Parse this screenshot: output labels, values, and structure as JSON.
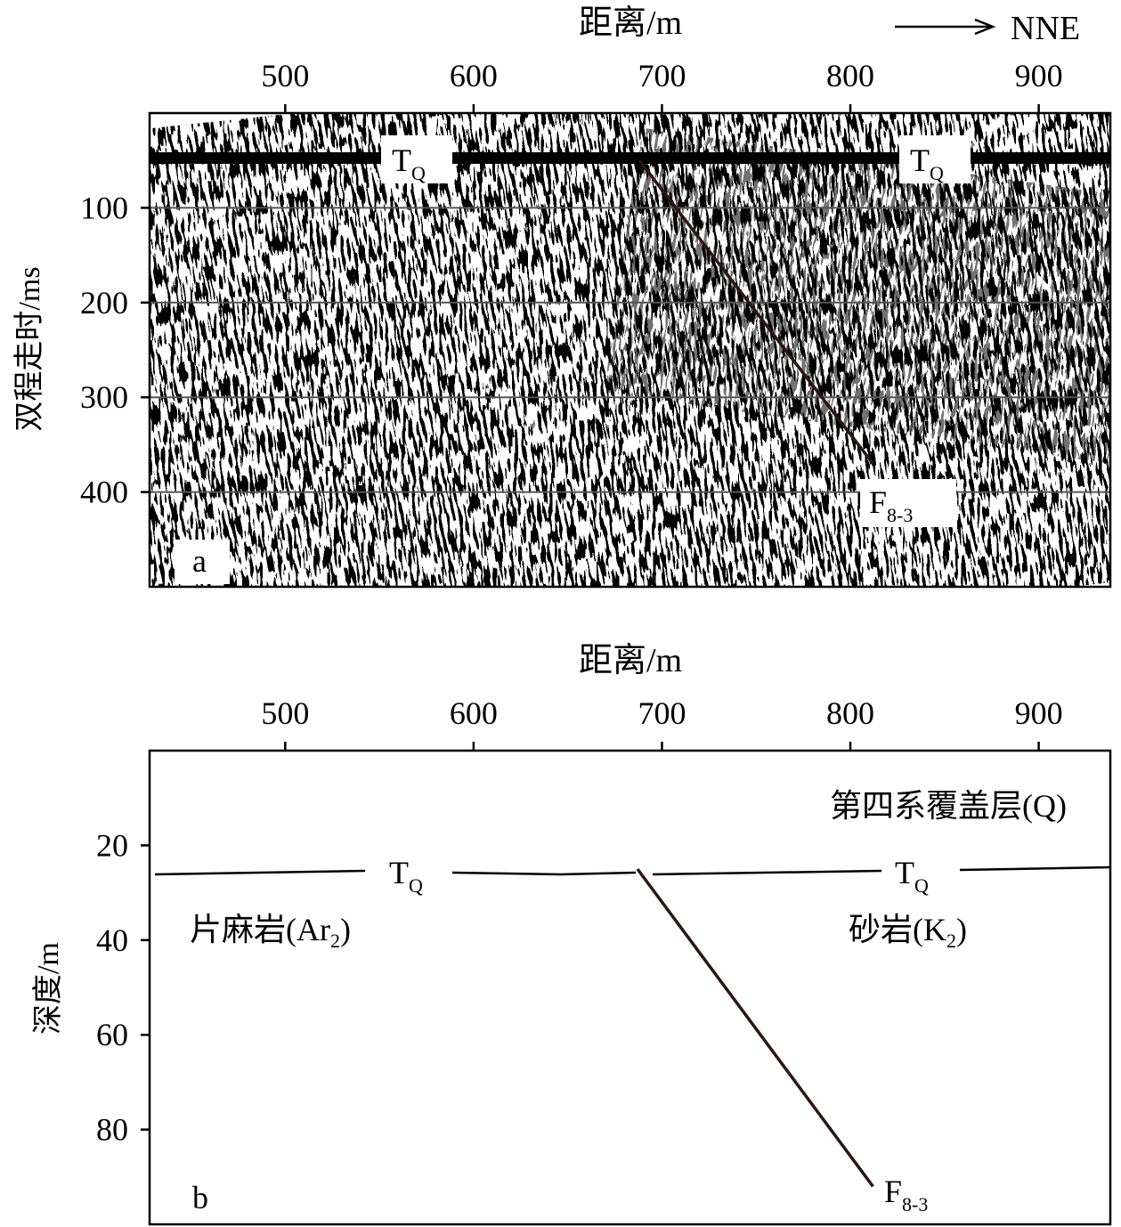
{
  "direction_label": "NNE",
  "panel_a": {
    "label": "a",
    "x_axis_title": "距离/m",
    "y_axis_title": "双程走时/ms",
    "x_ticks": [
      500,
      600,
      700,
      800,
      900
    ],
    "y_ticks": [
      100,
      200,
      300,
      400
    ],
    "x_range": [
      428,
      938
    ],
    "y_range": [
      0,
      500
    ],
    "horizon": {
      "label": "T",
      "sub": "Q"
    },
    "fault": {
      "label": "F",
      "sub": "8-3",
      "top": {
        "x": 688,
        "y": 50
      },
      "bottom": {
        "x": 812,
        "y": 370
      }
    },
    "grid_lines_at": [
      100,
      200,
      300,
      400
    ]
  },
  "panel_b": {
    "label": "b",
    "x_axis_title": "距离/m",
    "y_axis_title": "深度/m",
    "x_ticks": [
      500,
      600,
      700,
      800,
      900
    ],
    "y_ticks": [
      20,
      40,
      60,
      80
    ],
    "x_range": [
      428,
      938
    ],
    "y_range": [
      0,
      100
    ],
    "horizon": {
      "label": "T",
      "sub": "Q"
    },
    "fault": {
      "label": "F",
      "sub": "8-3",
      "top": {
        "x": 687,
        "y": 25
      },
      "bottom": {
        "x": 812,
        "y": 92
      }
    },
    "units": {
      "cover": "第四系覆盖层(Q)",
      "left_main": "片麻岩(Ar",
      "left_sub": "2",
      "left_close": ")",
      "right_main": "砂岩(K",
      "right_sub": "2",
      "right_close": ")"
    }
  }
}
